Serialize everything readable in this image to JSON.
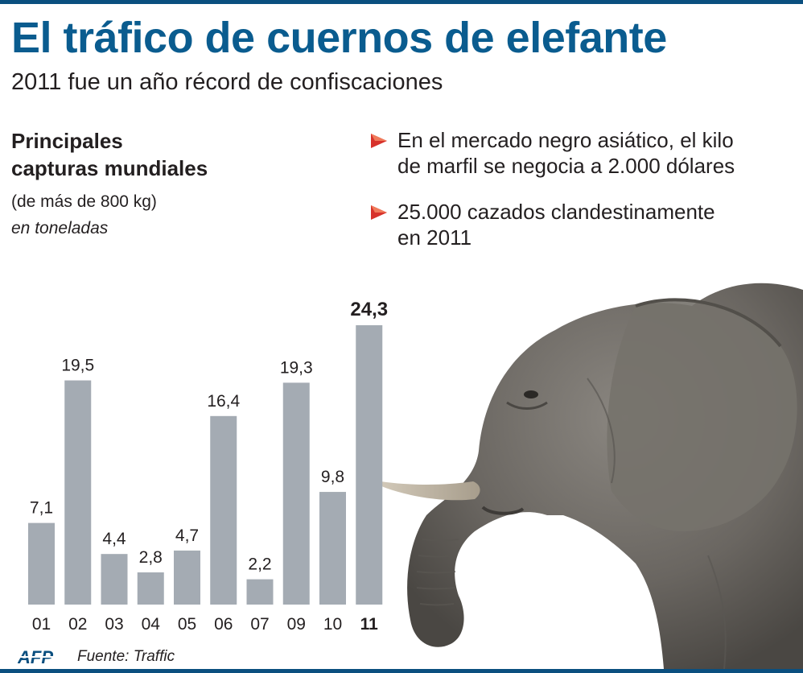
{
  "header": {
    "title": "El tráfico de cuernos de elefante",
    "subtitle": "2011 fue un año récord de confiscaciones"
  },
  "chart_heading": {
    "line1": "Principales",
    "line2": "capturas mundiales",
    "qualifier": "(de más de 800 kg)",
    "unit": "en toneladas"
  },
  "facts": [
    {
      "icon": "red-triangle-arrow-icon",
      "line1": "En el mercado negro asiático, el kilo",
      "line2": "de marfil se negocia a 2.000 dólares"
    },
    {
      "icon": "red-triangle-arrow-icon",
      "line1": "25.000 cazados clandestinamente",
      "line2": "en 2011"
    }
  ],
  "chart_data": {
    "type": "bar",
    "title": "Principales capturas mundiales",
    "subtitle": "(de más de 800 kg)",
    "ylabel": "en toneladas",
    "xlabel": "",
    "categories": [
      "01",
      "02",
      "03",
      "04",
      "05",
      "06",
      "07",
      "09",
      "10",
      "11"
    ],
    "values": [
      7.1,
      19.5,
      4.4,
      2.8,
      4.7,
      16.4,
      2.2,
      19.3,
      9.8,
      24.3
    ],
    "value_labels": [
      "7,1",
      "19,5",
      "4,4",
      "2,8",
      "4,7",
      "16,4",
      "2,2",
      "19,3",
      "9,8",
      "24,3"
    ],
    "highlight_index": 9,
    "ylim": [
      0,
      24.3
    ],
    "grid": false,
    "bar_color": "#a4abb3"
  },
  "colors": {
    "title": "#0a5c8f",
    "rule": "#0a4f7f",
    "arrow": "#d7322b",
    "text": "#231f20"
  },
  "footer": {
    "logo_text": "AFP",
    "source": "Fuente: Traffic"
  }
}
